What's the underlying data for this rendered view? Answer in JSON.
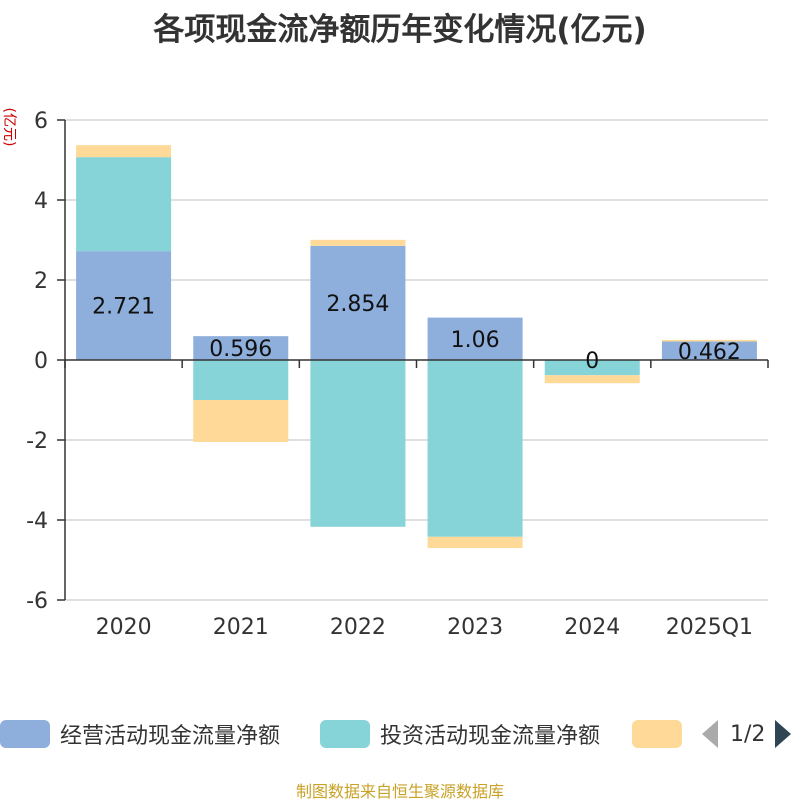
{
  "title": "各项现金流净额历年变化情况(亿元)",
  "unit": "(亿元)",
  "source": "制图数据来自恒生聚源数据库",
  "legend": {
    "items": [
      {
        "label": "经营活动现金流量净额",
        "color": "#8eaedb"
      },
      {
        "label": "投资活动现金流量净额",
        "color": "#86d4d8"
      },
      {
        "label": "",
        "color": "#fed998"
      }
    ],
    "page": "1/2"
  },
  "chart_data": {
    "type": "bar",
    "stacked": true,
    "categories": [
      "2020",
      "2021",
      "2022",
      "2023",
      "2024",
      "2025Q1"
    ],
    "ylim": [
      -6,
      6
    ],
    "yticks": [
      -6,
      -4,
      -2,
      0,
      2,
      4,
      6
    ],
    "grid": true,
    "legend_position": "bottom",
    "series": [
      {
        "name": "经营活动现金流量净额",
        "color": "#8eaedb",
        "values": [
          2.721,
          0.596,
          2.854,
          1.06,
          0,
          0.462
        ],
        "labels": [
          "2.721",
          "0.596",
          "2.854",
          "1.06",
          "0",
          "0.462"
        ]
      },
      {
        "name": "投资活动现金流量净额",
        "color": "#86d4d8",
        "values": [
          2.35,
          -1.0,
          -4.17,
          -4.42,
          -0.38,
          0
        ]
      },
      {
        "name": "",
        "color": "#fed998",
        "values": [
          0.3,
          -1.05,
          0.15,
          -0.28,
          -0.2,
          0.04
        ]
      }
    ]
  }
}
